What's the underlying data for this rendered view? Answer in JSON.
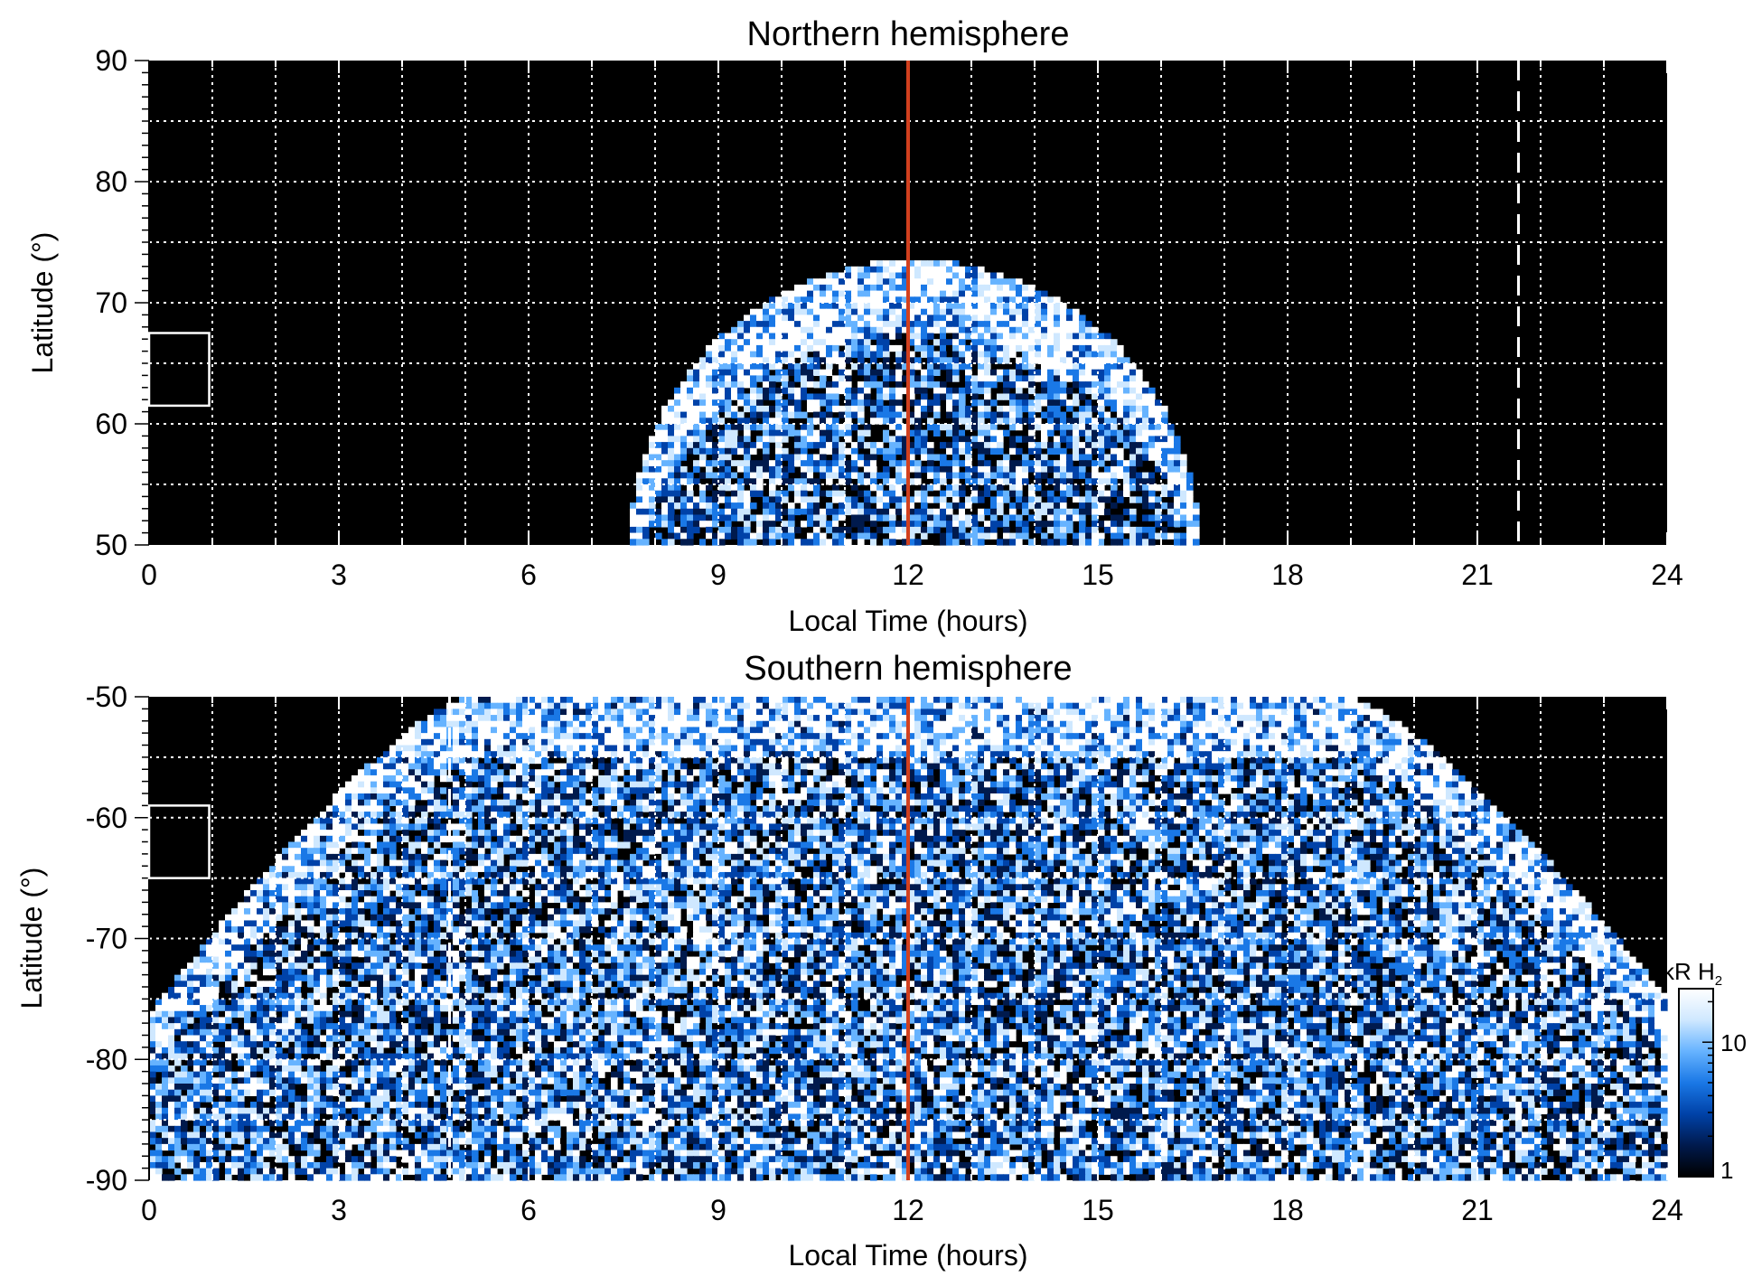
{
  "colors": {
    "background": "#000000",
    "grid": "#ffffff",
    "noon_line": "#d2401e",
    "colormap": [
      "#000000",
      "#001a4d",
      "#0042a8",
      "#1a78e6",
      "#66b3ff",
      "#cfe8ff",
      "#ffffff"
    ]
  },
  "colorbar": {
    "label_main": "kR H",
    "label_sub": "2",
    "scale": "log",
    "range": [
      1,
      25
    ],
    "tick_labels": [
      "1",
      "10"
    ],
    "tick_values": [
      1,
      10
    ]
  },
  "chart_data": [
    {
      "type": "heatmap",
      "title": "Northern hemisphere",
      "xlabel": "Local Time (hours)",
      "ylabel": "Latitude (°)",
      "xlim": [
        0,
        24
      ],
      "ylim": [
        50,
        90
      ],
      "xticks": [
        "0",
        "3",
        "6",
        "9",
        "12",
        "15",
        "18",
        "21",
        "24"
      ],
      "yticks": [
        "50",
        "60",
        "70",
        "80",
        "90"
      ],
      "grid": true,
      "noon_line_lt": 12,
      "dashed_line_lt": 21.65,
      "marker_box": {
        "lt": [
          0,
          0.95
        ],
        "lat": [
          61.5,
          67.5
        ]
      },
      "emission_region": {
        "lt_min": 7.6,
        "lt_max": 16.6,
        "lat_max_at_noon": 73.5,
        "lat_min": 50
      },
      "intensity_kR": {
        "min": 1,
        "max": 25
      }
    },
    {
      "type": "heatmap",
      "title": "Southern hemisphere",
      "xlabel": "Local Time (hours)",
      "ylabel": "Latitude (°)",
      "xlim": [
        0,
        24
      ],
      "ylim": [
        -90,
        -50
      ],
      "xticks": [
        "0",
        "3",
        "6",
        "9",
        "12",
        "15",
        "18",
        "21",
        "24"
      ],
      "yticks": [
        "-50",
        "-60",
        "-70",
        "-80",
        "-90"
      ],
      "grid": true,
      "noon_line_lt": 12,
      "dashed_line_lt": 4.75,
      "marker_box": {
        "lt": [
          0,
          0.95
        ],
        "lat": [
          -65,
          -59
        ]
      },
      "emission_region": {
        "lt_min": 0,
        "lt_max": 24,
        "lat_top_lt": [
          5,
          19
        ],
        "lat_min": -90
      },
      "intensity_kR": {
        "min": 1,
        "max": 25
      }
    }
  ]
}
